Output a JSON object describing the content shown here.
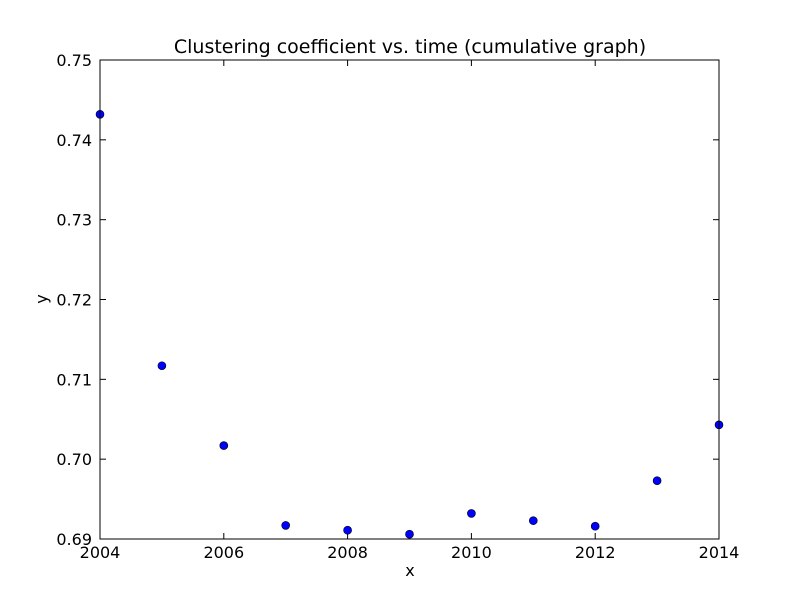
{
  "chart_data": {
    "type": "scatter",
    "title": "Clustering coefficient vs. time (cumulative graph)",
    "xlabel": "x",
    "ylabel": "y",
    "xlim": [
      2004,
      2014
    ],
    "ylim": [
      0.69,
      0.75
    ],
    "xticks": [
      "2004",
      "2006",
      "2008",
      "2010",
      "2012",
      "2014"
    ],
    "yticks": [
      "0.69",
      "0.70",
      "0.71",
      "0.72",
      "0.73",
      "0.74",
      "0.75"
    ],
    "grid": false,
    "marker_color": "#0000ff",
    "points": [
      {
        "x": 2004,
        "y": 0.7432
      },
      {
        "x": 2005,
        "y": 0.7117
      },
      {
        "x": 2006,
        "y": 0.7017
      },
      {
        "x": 2007,
        "y": 0.6917
      },
      {
        "x": 2008,
        "y": 0.6911
      },
      {
        "x": 2009,
        "y": 0.6906
      },
      {
        "x": 2010,
        "y": 0.6932
      },
      {
        "x": 2011,
        "y": 0.6923
      },
      {
        "x": 2012,
        "y": 0.6916
      },
      {
        "x": 2013,
        "y": 0.6973
      },
      {
        "x": 2014,
        "y": 0.7043
      }
    ]
  }
}
